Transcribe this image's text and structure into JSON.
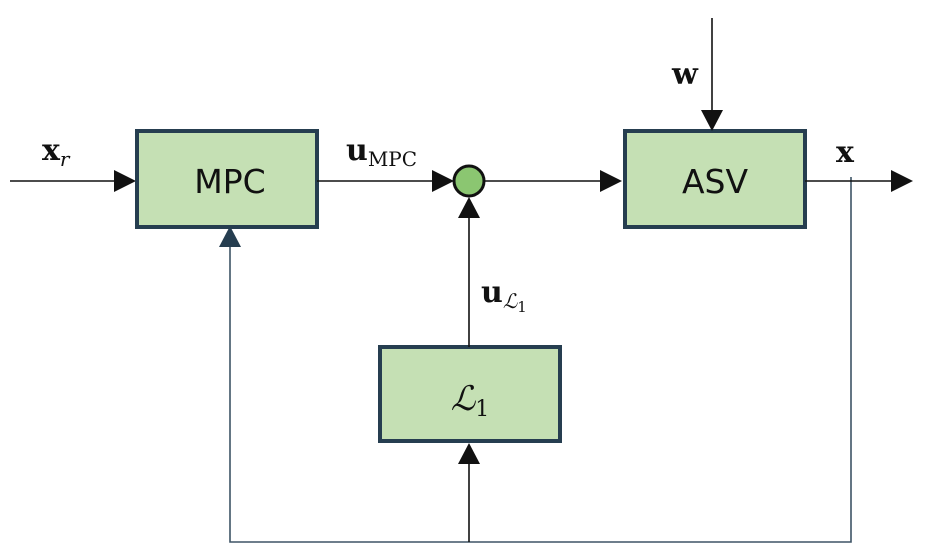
{
  "colors": {
    "block_fill": "#c5e0b4",
    "block_border": "#263e50",
    "summing_fill": "#8bc671",
    "feedback_line": "#3e5466",
    "arrow": "#111111"
  },
  "blocks": {
    "mpc": "MPC",
    "asv": "ASV",
    "l1_main": "ℒ",
    "l1_sub": "1"
  },
  "signals": {
    "reference": {
      "main": "x",
      "sub": "r"
    },
    "u_mpc": {
      "main": "u",
      "sub": "MPC"
    },
    "u_l1": {
      "main": "u",
      "sub": "ℒ",
      "subsub": "1"
    },
    "disturbance": {
      "main": "w"
    },
    "output": {
      "main": "x"
    }
  }
}
